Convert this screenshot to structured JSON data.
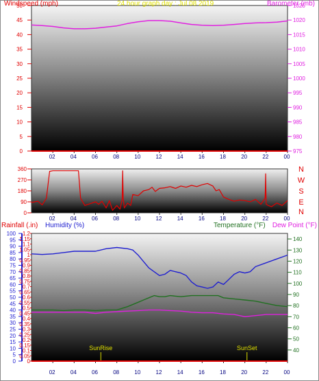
{
  "colors": {
    "wind": "#e00000",
    "baro": "#e020e0",
    "direction": "#e00000",
    "rain": "#e00000",
    "humidity": "#2020d0",
    "temperature": "#207020",
    "dewpoint": "#e020e0",
    "title": "#e0e000",
    "sun": "#e0e000",
    "axis_left": "#e00000",
    "axis_right": "#e020e0"
  },
  "chart_data": [
    {
      "id": "wind_baro",
      "type": "line",
      "title": "24 hour graph day : Jul 08 2019",
      "ylabel_left": "Windspeed (mph)",
      "ylabel_right": "Barometer (mb)",
      "ylim_left": [
        0,
        50
      ],
      "ylim_right": [
        975,
        1025
      ],
      "yticks_left": [
        "0",
        "5",
        "10",
        "15",
        "20",
        "25",
        "30",
        "35",
        "40",
        "45",
        "50"
      ],
      "yticks_right": [
        "975",
        "980",
        "985",
        "990",
        "995",
        "1000",
        "1005",
        "1010",
        "1015",
        "1020",
        "1025"
      ],
      "xticks": [
        "02",
        "04",
        "06",
        "08",
        "10",
        "12",
        "14",
        "16",
        "18",
        "20",
        "22",
        "00"
      ],
      "grid": false,
      "series": [
        {
          "key": "wind",
          "axis": "left",
          "x": [
            0,
            24
          ],
          "y": [
            0,
            0
          ]
        },
        {
          "key": "baro",
          "axis": "right",
          "x": [
            0,
            1,
            2,
            3,
            4,
            5,
            6,
            7,
            8,
            9,
            10,
            11,
            12,
            13,
            14,
            15,
            16,
            17,
            18,
            19,
            20,
            21,
            22,
            23,
            24
          ],
          "y": [
            1018.3,
            1018.1,
            1017.8,
            1017.3,
            1017,
            1017,
            1017.2,
            1017.6,
            1018,
            1018.8,
            1019.4,
            1019.8,
            1019.8,
            1019.6,
            1019,
            1018.5,
            1018.2,
            1018.1,
            1018.2,
            1018.5,
            1018.8,
            1019,
            1019.1,
            1019.3,
            1019.7
          ]
        }
      ]
    },
    {
      "id": "direction",
      "type": "line",
      "ylim": [
        0,
        360
      ],
      "yticks": [
        "0",
        "90",
        "180",
        "270",
        "360"
      ],
      "compass_labels": [
        "N",
        "W",
        "S",
        "E",
        "N"
      ],
      "xticks": [
        "02",
        "04",
        "06",
        "08",
        "10",
        "12",
        "14",
        "16",
        "18",
        "20",
        "22",
        "00"
      ],
      "grid": false,
      "series": [
        {
          "key": "direction",
          "x": [
            0,
            0.6,
            1,
            1.4,
            1.7,
            2,
            3,
            4,
            4.4,
            4.6,
            5,
            5.5,
            6,
            6.3,
            6.6,
            7,
            7.3,
            7.6,
            8,
            8.3,
            8.5,
            8.55,
            8.6,
            8.7,
            9,
            9.3,
            9.5,
            10,
            10.5,
            11,
            11.3,
            11.6,
            12,
            12.5,
            13,
            13.5,
            14,
            14.5,
            15,
            15.5,
            16,
            16.5,
            17,
            17.3,
            17.6,
            18,
            18.5,
            19,
            19.5,
            20,
            20.5,
            21,
            21.5,
            21.9,
            21.95,
            22,
            22.2,
            22.5,
            23,
            23.5,
            24
          ],
          "y": [
            85,
            95,
            65,
            120,
            340,
            345,
            345,
            345,
            345,
            120,
            60,
            75,
            90,
            70,
            95,
            40,
            100,
            20,
            60,
            30,
            110,
            345,
            120,
            40,
            80,
            60,
            150,
            140,
            180,
            190,
            210,
            175,
            200,
            205,
            215,
            200,
            220,
            210,
            225,
            215,
            230,
            240,
            220,
            180,
            190,
            130,
            110,
            95,
            105,
            100,
            90,
            110,
            70,
            120,
            320,
            70,
            60,
            50,
            80,
            60,
            100
          ]
        }
      ]
    },
    {
      "id": "rain_humidity_temp",
      "type": "line",
      "ylabel_rain": "Rainfall (.in)",
      "ylabel_humidity": "Humidity (%)",
      "ylabel_temp": "Temperature (°F)",
      "ylabel_dew": "Dew Point (°F)",
      "ylim_rain": [
        0,
        1.2
      ],
      "ylim_humidity": [
        0,
        100
      ],
      "ylim_temp": [
        30,
        145
      ],
      "yticks_rain": [
        "0",
        "0.05",
        "0.1",
        "0.15",
        "0.2",
        "0.25",
        "0.3",
        "0.35",
        "0.4",
        "0.45",
        "0.5",
        "0.55",
        "0.6",
        "0.65",
        "0.7",
        "0.75",
        "0.8",
        "0.85",
        "0.9",
        "0.95",
        "1",
        "1.05",
        "1.1",
        "1.15",
        "1.2"
      ],
      "yticks_humidity": [
        "0",
        "5",
        "10",
        "15",
        "20",
        "25",
        "30",
        "35",
        "40",
        "45",
        "50",
        "55",
        "60",
        "65",
        "70",
        "75",
        "80",
        "85",
        "90",
        "95",
        "100"
      ],
      "yticks_temp": [
        "40",
        "50",
        "60",
        "70",
        "80",
        "90",
        "100",
        "110",
        "120",
        "130",
        "140"
      ],
      "xticks": [
        "02",
        "04",
        "06",
        "08",
        "10",
        "12",
        "14",
        "16",
        "18",
        "20",
        "22",
        "00"
      ],
      "sunrise_label": "SunRise",
      "sunset_label": "SunSet",
      "sunrise_hour": 6.5,
      "sunset_hour": 20.2,
      "grid": false,
      "series": [
        {
          "key": "rain",
          "axis": "rain",
          "x": [
            0,
            24
          ],
          "y": [
            0,
            0
          ]
        },
        {
          "key": "humidity",
          "axis": "humidity",
          "x": [
            0,
            1,
            2,
            3,
            4,
            5,
            6,
            7,
            8,
            9,
            9.5,
            10,
            10.5,
            11,
            11.5,
            12,
            12.5,
            13,
            13.5,
            14,
            14.5,
            15,
            15.5,
            16,
            16.5,
            17,
            17.5,
            18,
            18.5,
            19,
            19.5,
            20,
            20.5,
            21,
            22,
            23,
            24
          ],
          "y": [
            84,
            83.5,
            84,
            85,
            86,
            86,
            86,
            88,
            89,
            88,
            87,
            83,
            78,
            73,
            70,
            67,
            68,
            71,
            70,
            69,
            67,
            62,
            59,
            58,
            57,
            58,
            62,
            60,
            64,
            68,
            70,
            69,
            70,
            74,
            77,
            80,
            83
          ]
        },
        {
          "key": "temperature",
          "axis": "temp",
          "x": [
            0,
            1,
            2,
            3,
            4,
            5,
            6,
            7,
            8,
            9,
            10,
            10.5,
            11,
            11.5,
            12,
            12.5,
            13,
            14,
            15,
            16,
            17,
            17.5,
            18,
            19,
            20,
            21,
            22,
            23,
            24
          ],
          "y": [
            76,
            76,
            76,
            75.5,
            76,
            76,
            75.5,
            76,
            76,
            79,
            83,
            85,
            87,
            89,
            88,
            88,
            89,
            88,
            89,
            89,
            89,
            89,
            87,
            86,
            85,
            84,
            82,
            80,
            79
          ]
        },
        {
          "key": "dewpoint",
          "axis": "temp",
          "x": [
            0,
            1,
            2,
            3,
            4,
            5,
            6,
            7,
            8,
            9,
            10,
            11,
            12,
            13,
            14,
            15,
            16,
            17,
            18,
            19,
            20,
            21,
            22,
            23,
            24
          ],
          "y": [
            74,
            74,
            74,
            74,
            74,
            74,
            73,
            74,
            74.5,
            75,
            75.5,
            76,
            76,
            75.5,
            75,
            74,
            73.5,
            73.5,
            72.5,
            72,
            70,
            71,
            72,
            72,
            72
          ]
        }
      ]
    }
  ]
}
